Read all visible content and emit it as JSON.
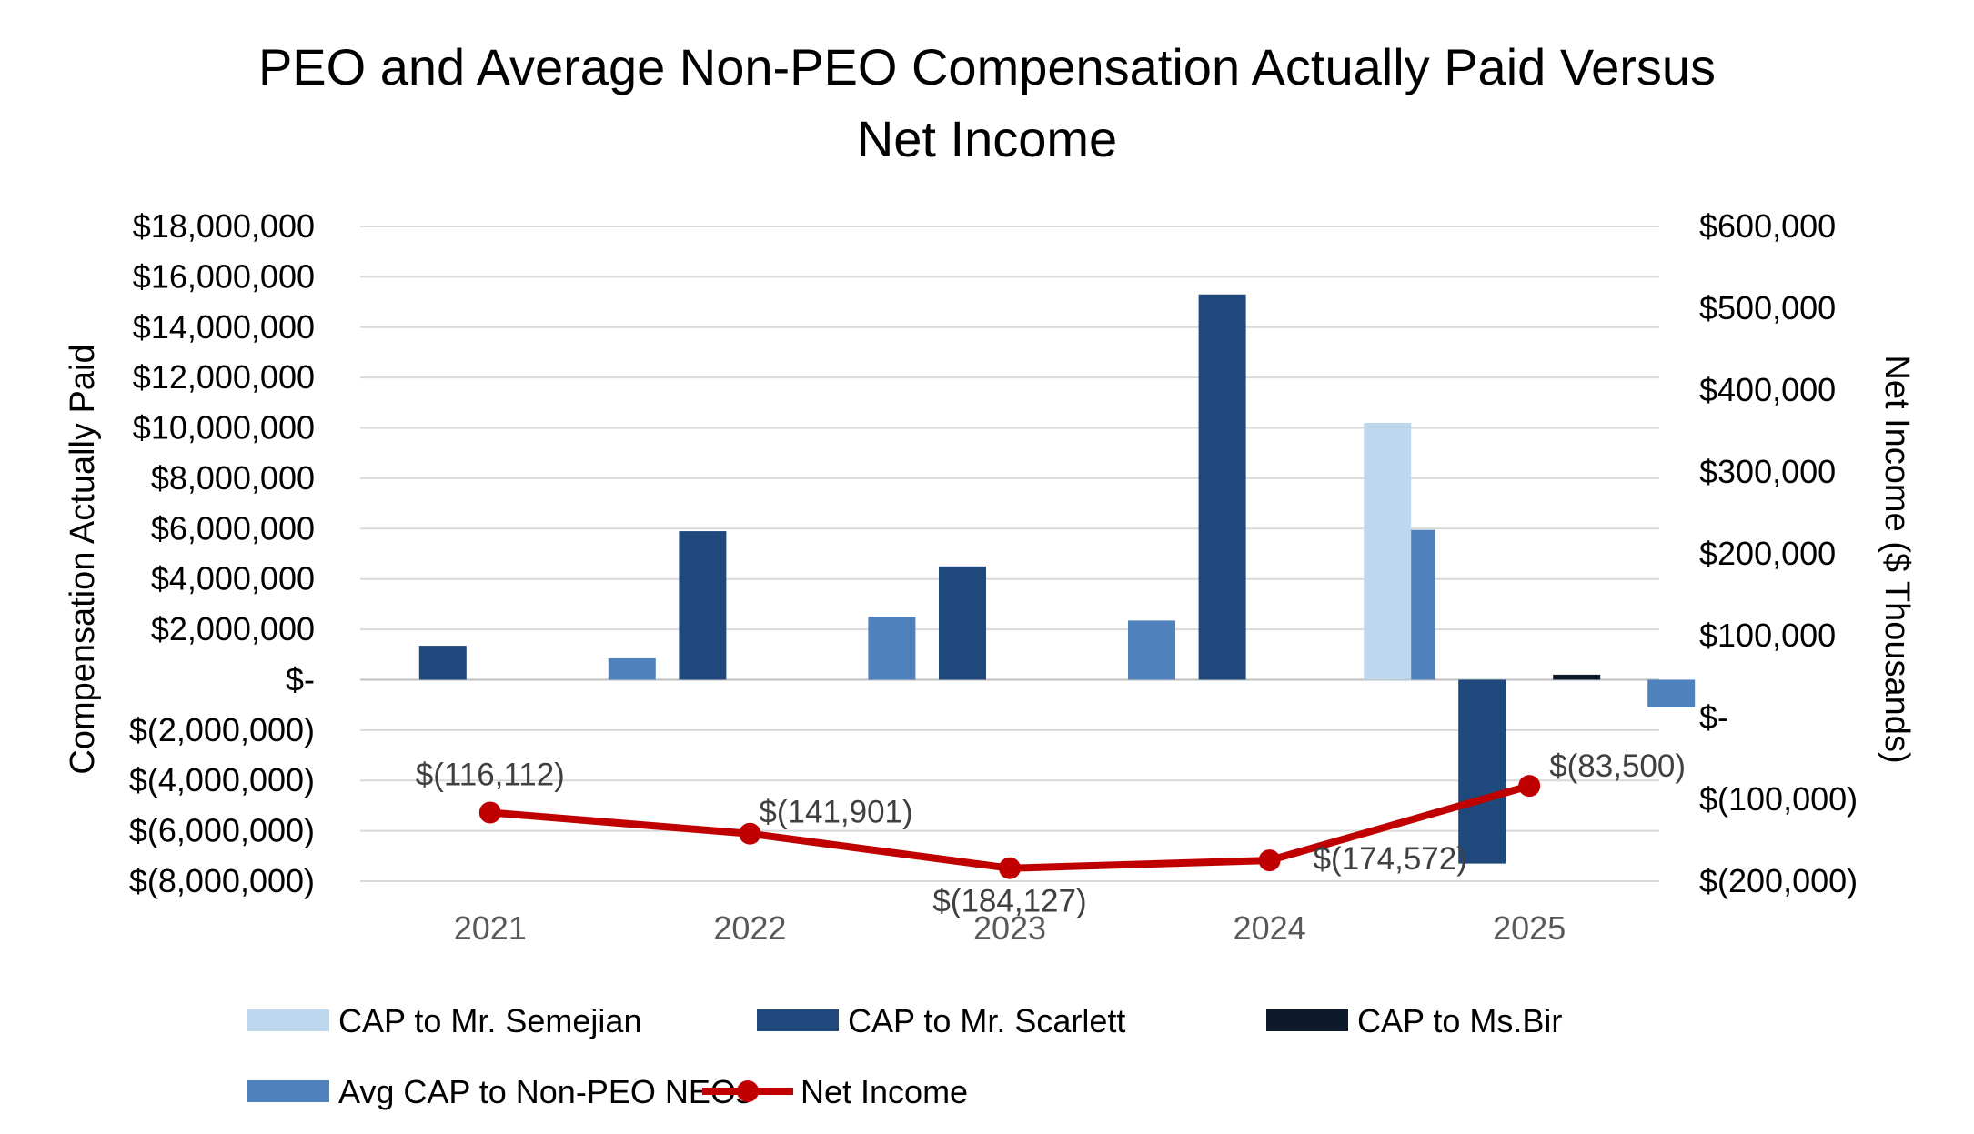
{
  "chart_data": {
    "type": "bar",
    "title_lines": [
      "PEO and Average Non-PEO Compensation Actually Paid Versus",
      "Net Income"
    ],
    "ylabel": "Compensation Actually Paid",
    "y2label": "Net Income ($ Thousands)",
    "categories": [
      "2021",
      "2022",
      "2023",
      "2024",
      "2025"
    ],
    "ylim": [
      -8000000,
      18000000
    ],
    "y2lim": [
      -200000,
      600000
    ],
    "y_ticks": [
      "$18,000,000",
      "$16,000,000",
      "$14,000,000",
      "$12,000,000",
      "$10,000,000",
      "$8,000,000",
      "$6,000,000",
      "$4,000,000",
      "$2,000,000",
      "$-",
      "$(2,000,000)",
      "$(4,000,000)",
      "$(6,000,000)",
      "$(8,000,000)"
    ],
    "y2_ticks": [
      "$600,000",
      "$500,000",
      "$400,000",
      "$300,000",
      "$200,000",
      "$100,000",
      "$-",
      "$(100,000)",
      "$(200,000)"
    ],
    "grid": true,
    "legend_position": "bottom",
    "series": [
      {
        "name": "CAP to Mr. Semejian",
        "type": "bar",
        "color": "#BDD7EE",
        "values": [
          null,
          null,
          null,
          null,
          10200000
        ]
      },
      {
        "name": "CAP to Mr. Scarlett",
        "type": "bar",
        "color": "#1F497D",
        "values": [
          1350000,
          5900000,
          4500000,
          15300000,
          -7300000
        ]
      },
      {
        "name": "CAP to Ms.Bir",
        "type": "bar",
        "color": "#0C1A2C",
        "values": [
          null,
          null,
          null,
          null,
          200000
        ]
      },
      {
        "name": "Avg CAP to Non-PEO NEOs",
        "type": "bar",
        "color": "#4F81BD",
        "values": [
          850000,
          2500000,
          2350000,
          5950000,
          -1100000
        ]
      },
      {
        "name": "Net Income",
        "type": "line",
        "axis": "right",
        "color": "#C00000",
        "values": [
          -116112,
          -141901,
          -184127,
          -174572,
          -83500
        ],
        "labels": [
          "$(116,112)",
          "$(141,901)",
          "$(184,127)",
          "$(174,572)",
          "$(83,500)"
        ]
      }
    ]
  }
}
